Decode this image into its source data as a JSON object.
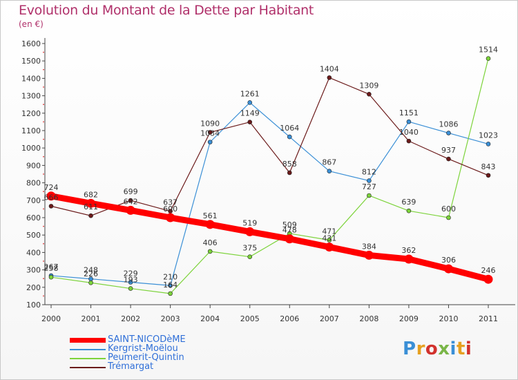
{
  "title": "Evolution du Montant de la Dette par Habitant",
  "subtitle": "(en €)",
  "logo": {
    "text": "Proxiti",
    "colors": [
      "#3a8fd6",
      "#e6a020",
      "#d2322d",
      "#7ab648",
      "#3a8fd6",
      "#e6a020",
      "#d2322d"
    ]
  },
  "chart_data": {
    "type": "line",
    "x": [
      "2000",
      "2001",
      "2002",
      "2003",
      "2004",
      "2005",
      "2006",
      "2007",
      "2008",
      "2009",
      "2010",
      "2011"
    ],
    "ylim": [
      100,
      1600
    ],
    "yticks": [
      "100",
      "200",
      "300",
      "400",
      "500",
      "600",
      "700",
      "800",
      "900",
      "1000",
      "1100",
      "1200",
      "1300",
      "1400",
      "1500",
      "1600"
    ],
    "grid": false,
    "legend_position": "bottom-left",
    "series": [
      {
        "name": "SAINT-NICODèME",
        "color": "#ff0000",
        "values": [
          724,
          682,
          642,
          600,
          561,
          519,
          478,
          431,
          384,
          362,
          306,
          246
        ],
        "labels": [
          "724",
          "682",
          "642",
          "600",
          "561",
          "519",
          "478",
          "431",
          "384",
          "362",
          "306",
          "246"
        ]
      },
      {
        "name": "Kergrist-Moëlou",
        "color": "#3a8fd6",
        "values": [
          267,
          248,
          229,
          210,
          1034,
          1261,
          1064,
          867,
          812,
          1151,
          1086,
          1023
        ],
        "labels": [
          "267",
          "248",
          "229",
          "210",
          "1034",
          "1261",
          "1064",
          "867",
          "812",
          "1151",
          "1086",
          "1023"
        ]
      },
      {
        "name": "Peumerit-Quintin",
        "color": "#7cd33a",
        "values": [
          258,
          226,
          193,
          164,
          406,
          375,
          509,
          471,
          727,
          639,
          600,
          1514
        ],
        "labels": [
          "258",
          "226",
          "193",
          "164",
          "406",
          "375",
          "509",
          "471",
          "727",
          "639",
          "600",
          "1514"
        ]
      },
      {
        "name": "Trémargat",
        "color": "#6b1a1a",
        "values": [
          666,
          611,
          699,
          637,
          1090,
          1149,
          858,
          1404,
          1309,
          1040,
          937,
          843
        ],
        "labels": [
          "666",
          "611",
          "699",
          "637",
          "1090",
          "1149",
          "858",
          "1404",
          "1309",
          "1040",
          "937",
          "843"
        ]
      }
    ]
  }
}
